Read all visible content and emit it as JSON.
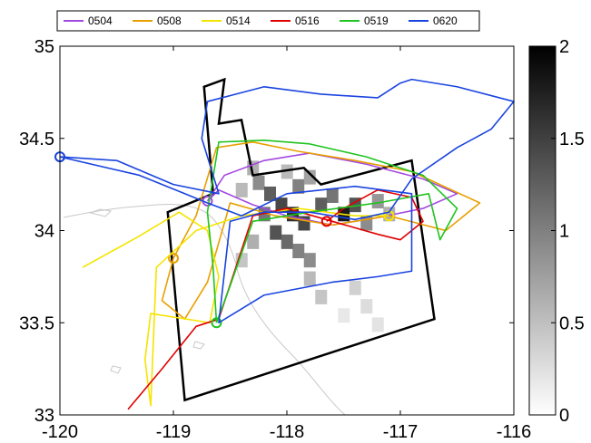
{
  "chart_data": {
    "type": "line",
    "title": "",
    "xlabel": "",
    "ylabel": "",
    "xlim": [
      -120,
      -116
    ],
    "ylim": [
      33,
      35
    ],
    "x_ticks": [
      "-120",
      "-119",
      "-118",
      "-117",
      "-116"
    ],
    "y_ticks": [
      "33",
      "33.5",
      "34",
      "34.5",
      "35"
    ],
    "grid": false,
    "legend": {
      "placement": "top",
      "orientation": "horizontal",
      "entries": [
        "0504",
        "0508",
        "0514",
        "0516",
        "0519",
        "0620"
      ]
    },
    "colorbar": {
      "range": [
        0,
        2
      ],
      "ticks": [
        "0",
        "0.5",
        "1",
        "1.5",
        "2"
      ],
      "colormap": "gray-reversed"
    },
    "series": [
      {
        "name": "0504",
        "color": "#a349e0",
        "points": [
          [
            -118.7,
            34.16
          ],
          [
            -118.55,
            34.3
          ],
          [
            -118.2,
            34.38
          ],
          [
            -117.8,
            34.42
          ],
          [
            -117.3,
            34.36
          ],
          [
            -116.8,
            34.28
          ],
          [
            -116.5,
            34.2
          ],
          [
            -116.8,
            34.12
          ],
          [
            -117.2,
            34.07
          ],
          [
            -117.6,
            34.03
          ],
          [
            -118.0,
            34.08
          ],
          [
            -118.3,
            34.14
          ],
          [
            -118.6,
            34.22
          ],
          [
            -118.7,
            34.16
          ]
        ]
      },
      {
        "name": "0508",
        "color": "#e8a000",
        "points": [
          [
            -119.0,
            33.85
          ],
          [
            -118.8,
            34.08
          ],
          [
            -118.62,
            34.45
          ],
          [
            -118.3,
            34.48
          ],
          [
            -117.9,
            34.43
          ],
          [
            -117.4,
            34.38
          ],
          [
            -116.9,
            34.32
          ],
          [
            -116.3,
            34.15
          ],
          [
            -116.6,
            34.0
          ],
          [
            -117.1,
            34.08
          ],
          [
            -117.6,
            34.03
          ],
          [
            -118.1,
            34.08
          ],
          [
            -118.5,
            34.15
          ],
          [
            -118.7,
            33.72
          ],
          [
            -118.9,
            33.52
          ],
          [
            -119.1,
            33.62
          ],
          [
            -119.0,
            33.85
          ]
        ]
      },
      {
        "name": "0514",
        "color": "#f5e400",
        "points": [
          [
            -119.8,
            33.8
          ],
          [
            -119.3,
            33.97
          ],
          [
            -118.95,
            34.1
          ],
          [
            -118.7,
            34.0
          ],
          [
            -118.6,
            33.75
          ],
          [
            -118.68,
            33.5
          ],
          [
            -119.2,
            33.55
          ],
          [
            -119.25,
            33.3
          ],
          [
            -119.2,
            33.05
          ],
          [
            -119.15,
            33.8
          ],
          [
            -118.8,
            34.0
          ],
          [
            -118.4,
            34.08
          ],
          [
            -117.9,
            34.12
          ],
          [
            -117.4,
            34.08
          ],
          [
            -117.1,
            34.08
          ]
        ]
      },
      {
        "name": "0516",
        "color": "#e00000",
        "points": [
          [
            -119.4,
            33.03
          ],
          [
            -119.1,
            33.25
          ],
          [
            -118.8,
            33.48
          ],
          [
            -118.6,
            33.52
          ],
          [
            -118.45,
            33.8
          ],
          [
            -118.3,
            34.08
          ],
          [
            -118.0,
            34.12
          ],
          [
            -117.6,
            34.05
          ],
          [
            -117.2,
            33.98
          ],
          [
            -117.0,
            33.95
          ],
          [
            -116.8,
            34.05
          ],
          [
            -116.9,
            34.18
          ],
          [
            -117.2,
            34.22
          ],
          [
            -117.5,
            34.12
          ],
          [
            -117.65,
            34.05
          ]
        ]
      },
      {
        "name": "0519",
        "color": "#1fc41f",
        "points": [
          [
            -118.62,
            33.5
          ],
          [
            -118.65,
            33.8
          ],
          [
            -118.7,
            34.1
          ],
          [
            -118.6,
            34.48
          ],
          [
            -118.2,
            34.49
          ],
          [
            -117.8,
            34.47
          ],
          [
            -117.3,
            34.4
          ],
          [
            -116.8,
            34.3
          ],
          [
            -116.5,
            34.12
          ],
          [
            -116.65,
            33.95
          ],
          [
            -116.75,
            34.2
          ],
          [
            -117.2,
            34.15
          ],
          [
            -117.8,
            34.1
          ],
          [
            -118.3,
            34.05
          ],
          [
            -118.5,
            33.7
          ],
          [
            -118.62,
            33.5
          ]
        ]
      },
      {
        "name": "0620",
        "color": "#1a44e0",
        "points": [
          [
            -120.0,
            34.4
          ],
          [
            -119.5,
            34.38
          ],
          [
            -119.0,
            34.25
          ],
          [
            -118.6,
            34.2
          ],
          [
            -118.75,
            34.5
          ],
          [
            -118.7,
            34.7
          ],
          [
            -118.2,
            34.78
          ],
          [
            -117.7,
            34.74
          ],
          [
            -117.2,
            34.72
          ],
          [
            -117.0,
            34.8
          ],
          [
            -116.9,
            34.82
          ],
          [
            -116.5,
            34.78
          ],
          [
            -116.0,
            34.7
          ],
          [
            -116.2,
            34.55
          ],
          [
            -116.5,
            34.45
          ],
          [
            -116.9,
            34.28
          ],
          [
            -117.1,
            34.1
          ],
          [
            -117.4,
            34.06
          ],
          [
            -117.8,
            34.1
          ],
          [
            -118.2,
            34.1
          ],
          [
            -118.5,
            34.05
          ],
          [
            -118.6,
            33.5
          ],
          [
            -118.2,
            33.65
          ],
          [
            -117.6,
            33.72
          ],
          [
            -117.2,
            33.75
          ],
          [
            -116.9,
            33.78
          ],
          [
            -116.9,
            34.2
          ],
          [
            -117.4,
            34.24
          ],
          [
            -118.0,
            34.2
          ],
          [
            -118.4,
            34.08
          ],
          [
            -118.7,
            34.15
          ],
          [
            -118.9,
            34.2
          ],
          [
            -119.3,
            34.3
          ],
          [
            -120.0,
            34.4
          ]
        ]
      }
    ],
    "boundary": [
      [
        -118.73,
        34.78
      ],
      [
        -118.55,
        34.82
      ],
      [
        -118.6,
        34.58
      ],
      [
        -118.4,
        34.6
      ],
      [
        -118.3,
        34.3
      ],
      [
        -117.85,
        34.34
      ],
      [
        -117.7,
        34.25
      ],
      [
        -116.9,
        34.38
      ],
      [
        -116.7,
        33.52
      ],
      [
        -118.9,
        33.08
      ],
      [
        -119.05,
        34.1
      ],
      [
        -118.65,
        34.2
      ],
      [
        -118.73,
        34.78
      ]
    ]
  }
}
